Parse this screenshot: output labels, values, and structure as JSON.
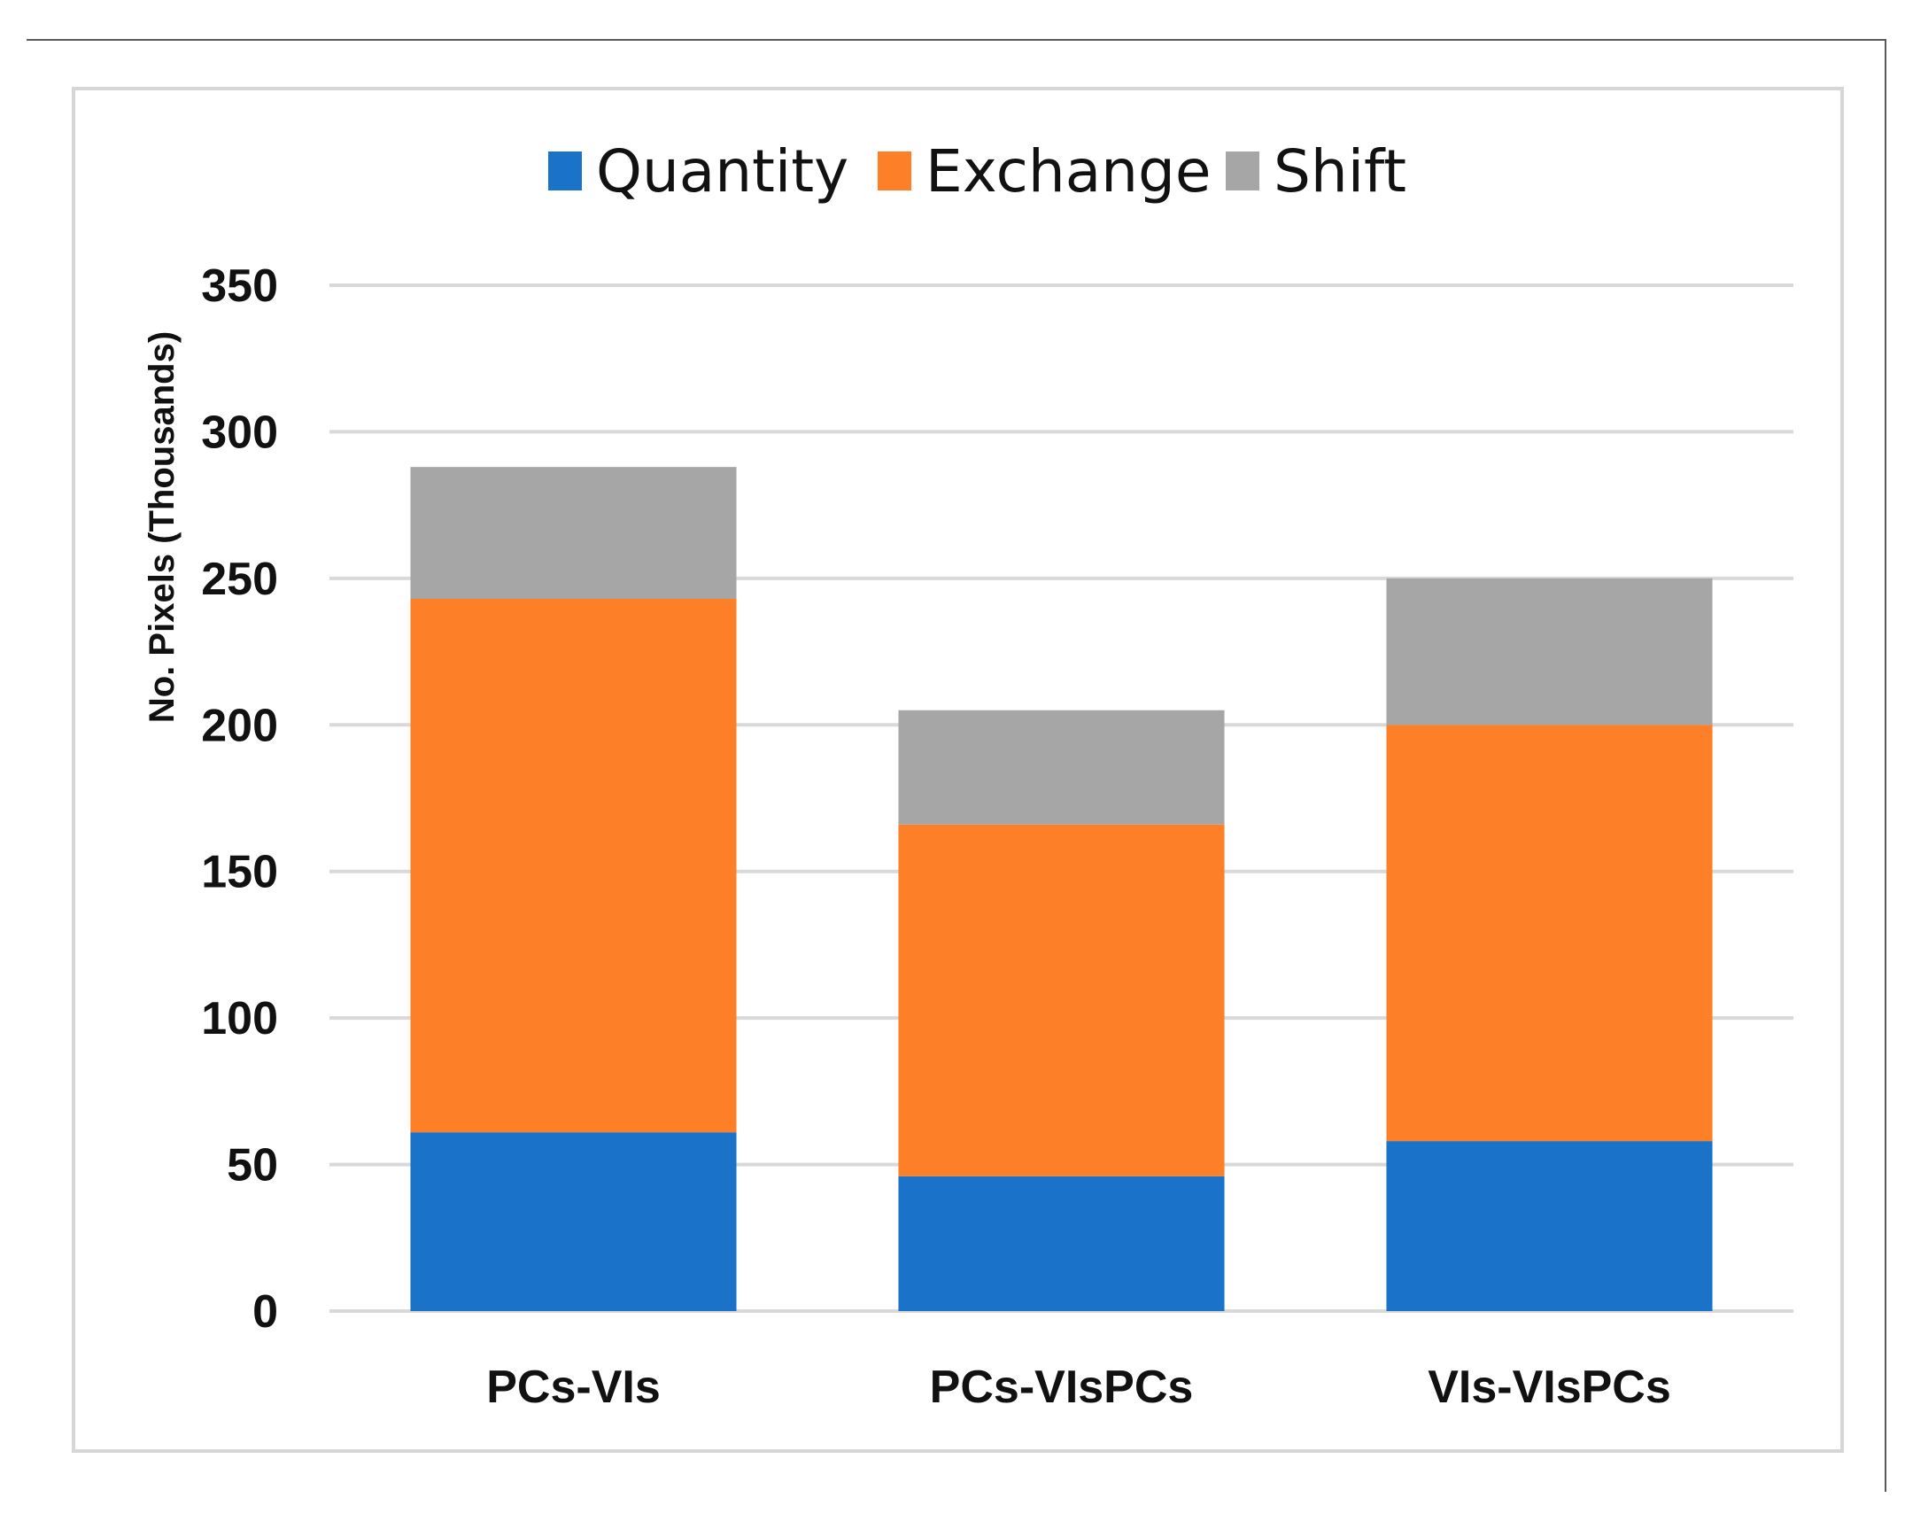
{
  "chart_data": {
    "type": "bar",
    "stacked": true,
    "title": "",
    "xlabel": "",
    "ylabel": "No. Pixels (Thousands)",
    "ylim": [
      0,
      350
    ],
    "yticks": [
      0,
      50,
      100,
      150,
      200,
      250,
      300,
      350
    ],
    "grid": true,
    "legend_position": "top",
    "categories": [
      "PCs-VIs",
      "PCs-VIsPCs",
      "VIs-VIsPCs"
    ],
    "series": [
      {
        "name": "Quantity",
        "color": "#1a73c8",
        "values": [
          61,
          46,
          58
        ]
      },
      {
        "name": "Exchange",
        "color": "#fd7f27",
        "values": [
          182,
          120,
          142
        ]
      },
      {
        "name": "Shift",
        "color": "#a6a6a6",
        "values": [
          45,
          39,
          50
        ]
      }
    ]
  }
}
